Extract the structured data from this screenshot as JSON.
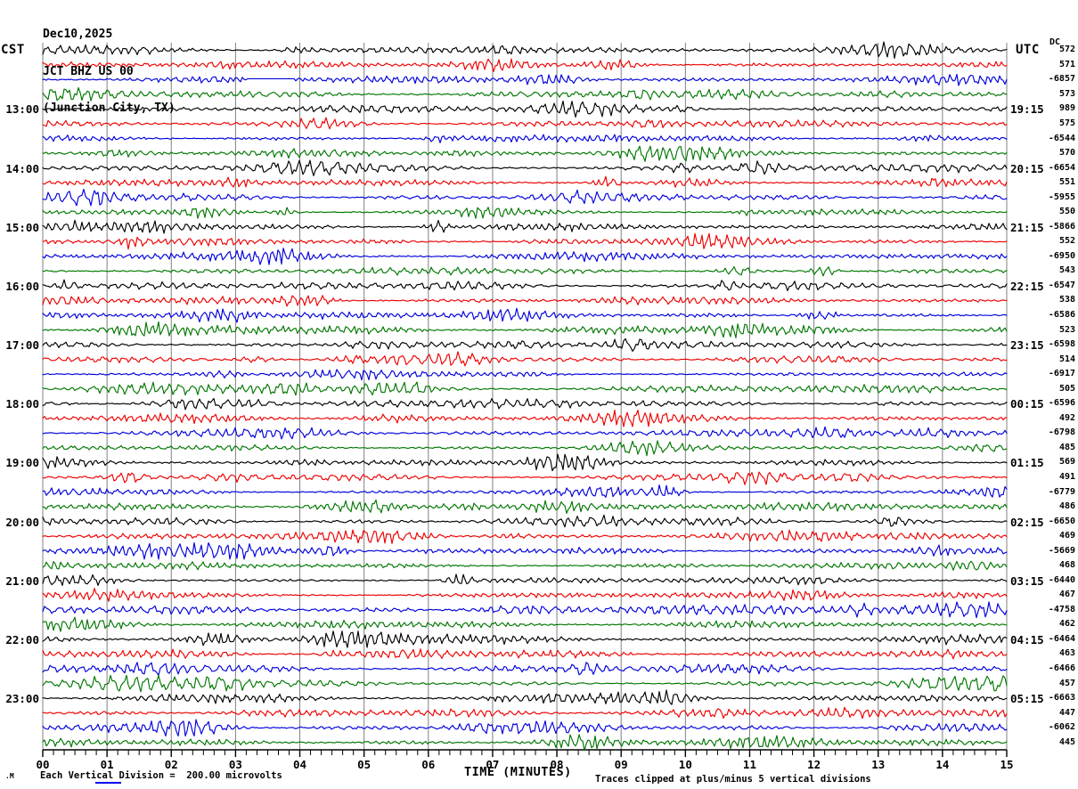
{
  "title": {
    "date": "Dec10,2025",
    "station": "JCT BHZ US 00",
    "location": "(Junction City, TX)"
  },
  "headers": {
    "left_tz": "CST",
    "right_tz": "UTC",
    "dc": "DC"
  },
  "x_axis": {
    "title": "TIME (MINUTES)",
    "tick_labels": [
      "00",
      "01",
      "02",
      "03",
      "04",
      "05",
      "06",
      "07",
      "08",
      "09",
      "10",
      "11",
      "12",
      "13",
      "14",
      "15"
    ]
  },
  "footer": {
    "watermark": ".M",
    "scale_note": "Each Vertical Division =  200.00 microvolts",
    "clip_note": "Traces clipped at plus/minus 5 vertical divisions"
  },
  "colors": {
    "trace_cycle": [
      "#000000",
      "#ee0000",
      "#0000dd",
      "#007700"
    ],
    "grid": "#808080",
    "axis": "#000000",
    "link_underline": "#0000ee"
  },
  "chart_data": {
    "type": "line",
    "subtype": "helicorder-seismogram",
    "station": "JCT BHZ US 00",
    "station_location": "(Junction City, TX)",
    "date": "Dec10,2025",
    "x_range_minutes": [
      0,
      15
    ],
    "minutes_per_row": 15,
    "left_labels_timezone": "CST",
    "right_labels_timezone": "UTC",
    "vertical_division_microvolts": 200.0,
    "clip_divisions": 5,
    "rows": [
      {
        "dc": "572",
        "seed": 11
      },
      {
        "dc": "571",
        "seed": 47
      },
      {
        "dc": "-6857",
        "seed": 83,
        "flat": [
          278,
          330
        ]
      },
      {
        "dc": "573",
        "seed": 7
      },
      {
        "cst": "13:00",
        "utc": "19:15",
        "dc": "989",
        "seed": 29
      },
      {
        "dc": "575",
        "seed": 53
      },
      {
        "dc": "-6544",
        "seed": 97
      },
      {
        "dc": "570",
        "seed": 131
      },
      {
        "cst": "14:00",
        "utc": "20:15",
        "dc": "-6654",
        "seed": 17
      },
      {
        "dc": "551",
        "seed": 59
      },
      {
        "dc": "-5955",
        "seed": 101
      },
      {
        "dc": "550",
        "seed": 139
      },
      {
        "cst": "15:00",
        "utc": "21:15",
        "dc": "-5866",
        "seed": 23
      },
      {
        "dc": "552",
        "seed": 61
      },
      {
        "dc": "-6950",
        "seed": 103
      },
      {
        "dc": "543",
        "seed": 149
      },
      {
        "cst": "16:00",
        "utc": "22:15",
        "dc": "-6547",
        "seed": 31
      },
      {
        "dc": "538",
        "seed": 67
      },
      {
        "dc": "-6586",
        "seed": 107
      },
      {
        "dc": "523",
        "seed": 151
      },
      {
        "cst": "17:00",
        "utc": "23:15",
        "dc": "-6598",
        "seed": 37
      },
      {
        "dc": "514",
        "seed": 71
      },
      {
        "dc": "-6917",
        "seed": 109
      },
      {
        "dc": "505",
        "seed": 157
      },
      {
        "cst": "18:00",
        "utc": "00:15",
        "dc": "-6596",
        "seed": 41
      },
      {
        "dc": "492",
        "seed": 73
      },
      {
        "dc": "-6798",
        "seed": 113
      },
      {
        "dc": "485",
        "seed": 163
      },
      {
        "cst": "19:00",
        "utc": "01:15",
        "dc": "569",
        "seed": 43
      },
      {
        "dc": "491",
        "seed": 79
      },
      {
        "dc": "-6779",
        "seed": 127
      },
      {
        "dc": "486",
        "seed": 167
      },
      {
        "cst": "20:00",
        "utc": "02:15",
        "dc": "-6650",
        "seed": 3
      },
      {
        "dc": "469",
        "seed": 13
      },
      {
        "dc": "-5669",
        "seed": 19
      },
      {
        "dc": "468",
        "seed": 89
      },
      {
        "cst": "21:00",
        "utc": "03:15",
        "dc": "-6440",
        "seed": 137
      },
      {
        "dc": "467",
        "seed": 173
      },
      {
        "dc": "-4758",
        "seed": 5
      },
      {
        "dc": "462",
        "seed": 57
      },
      {
        "cst": "22:00",
        "utc": "04:15",
        "dc": "-6464",
        "seed": 91
      },
      {
        "dc": "463",
        "seed": 141
      },
      {
        "dc": "-6466",
        "seed": 179
      },
      {
        "dc": "457",
        "seed": 121
      },
      {
        "cst": "23:00",
        "utc": "05:15",
        "dc": "-6663",
        "seed": 77
      },
      {
        "dc": "447",
        "seed": 33
      },
      {
        "dc": "-6062",
        "seed": 9
      },
      {
        "dc": "445",
        "seed": 65
      }
    ]
  }
}
